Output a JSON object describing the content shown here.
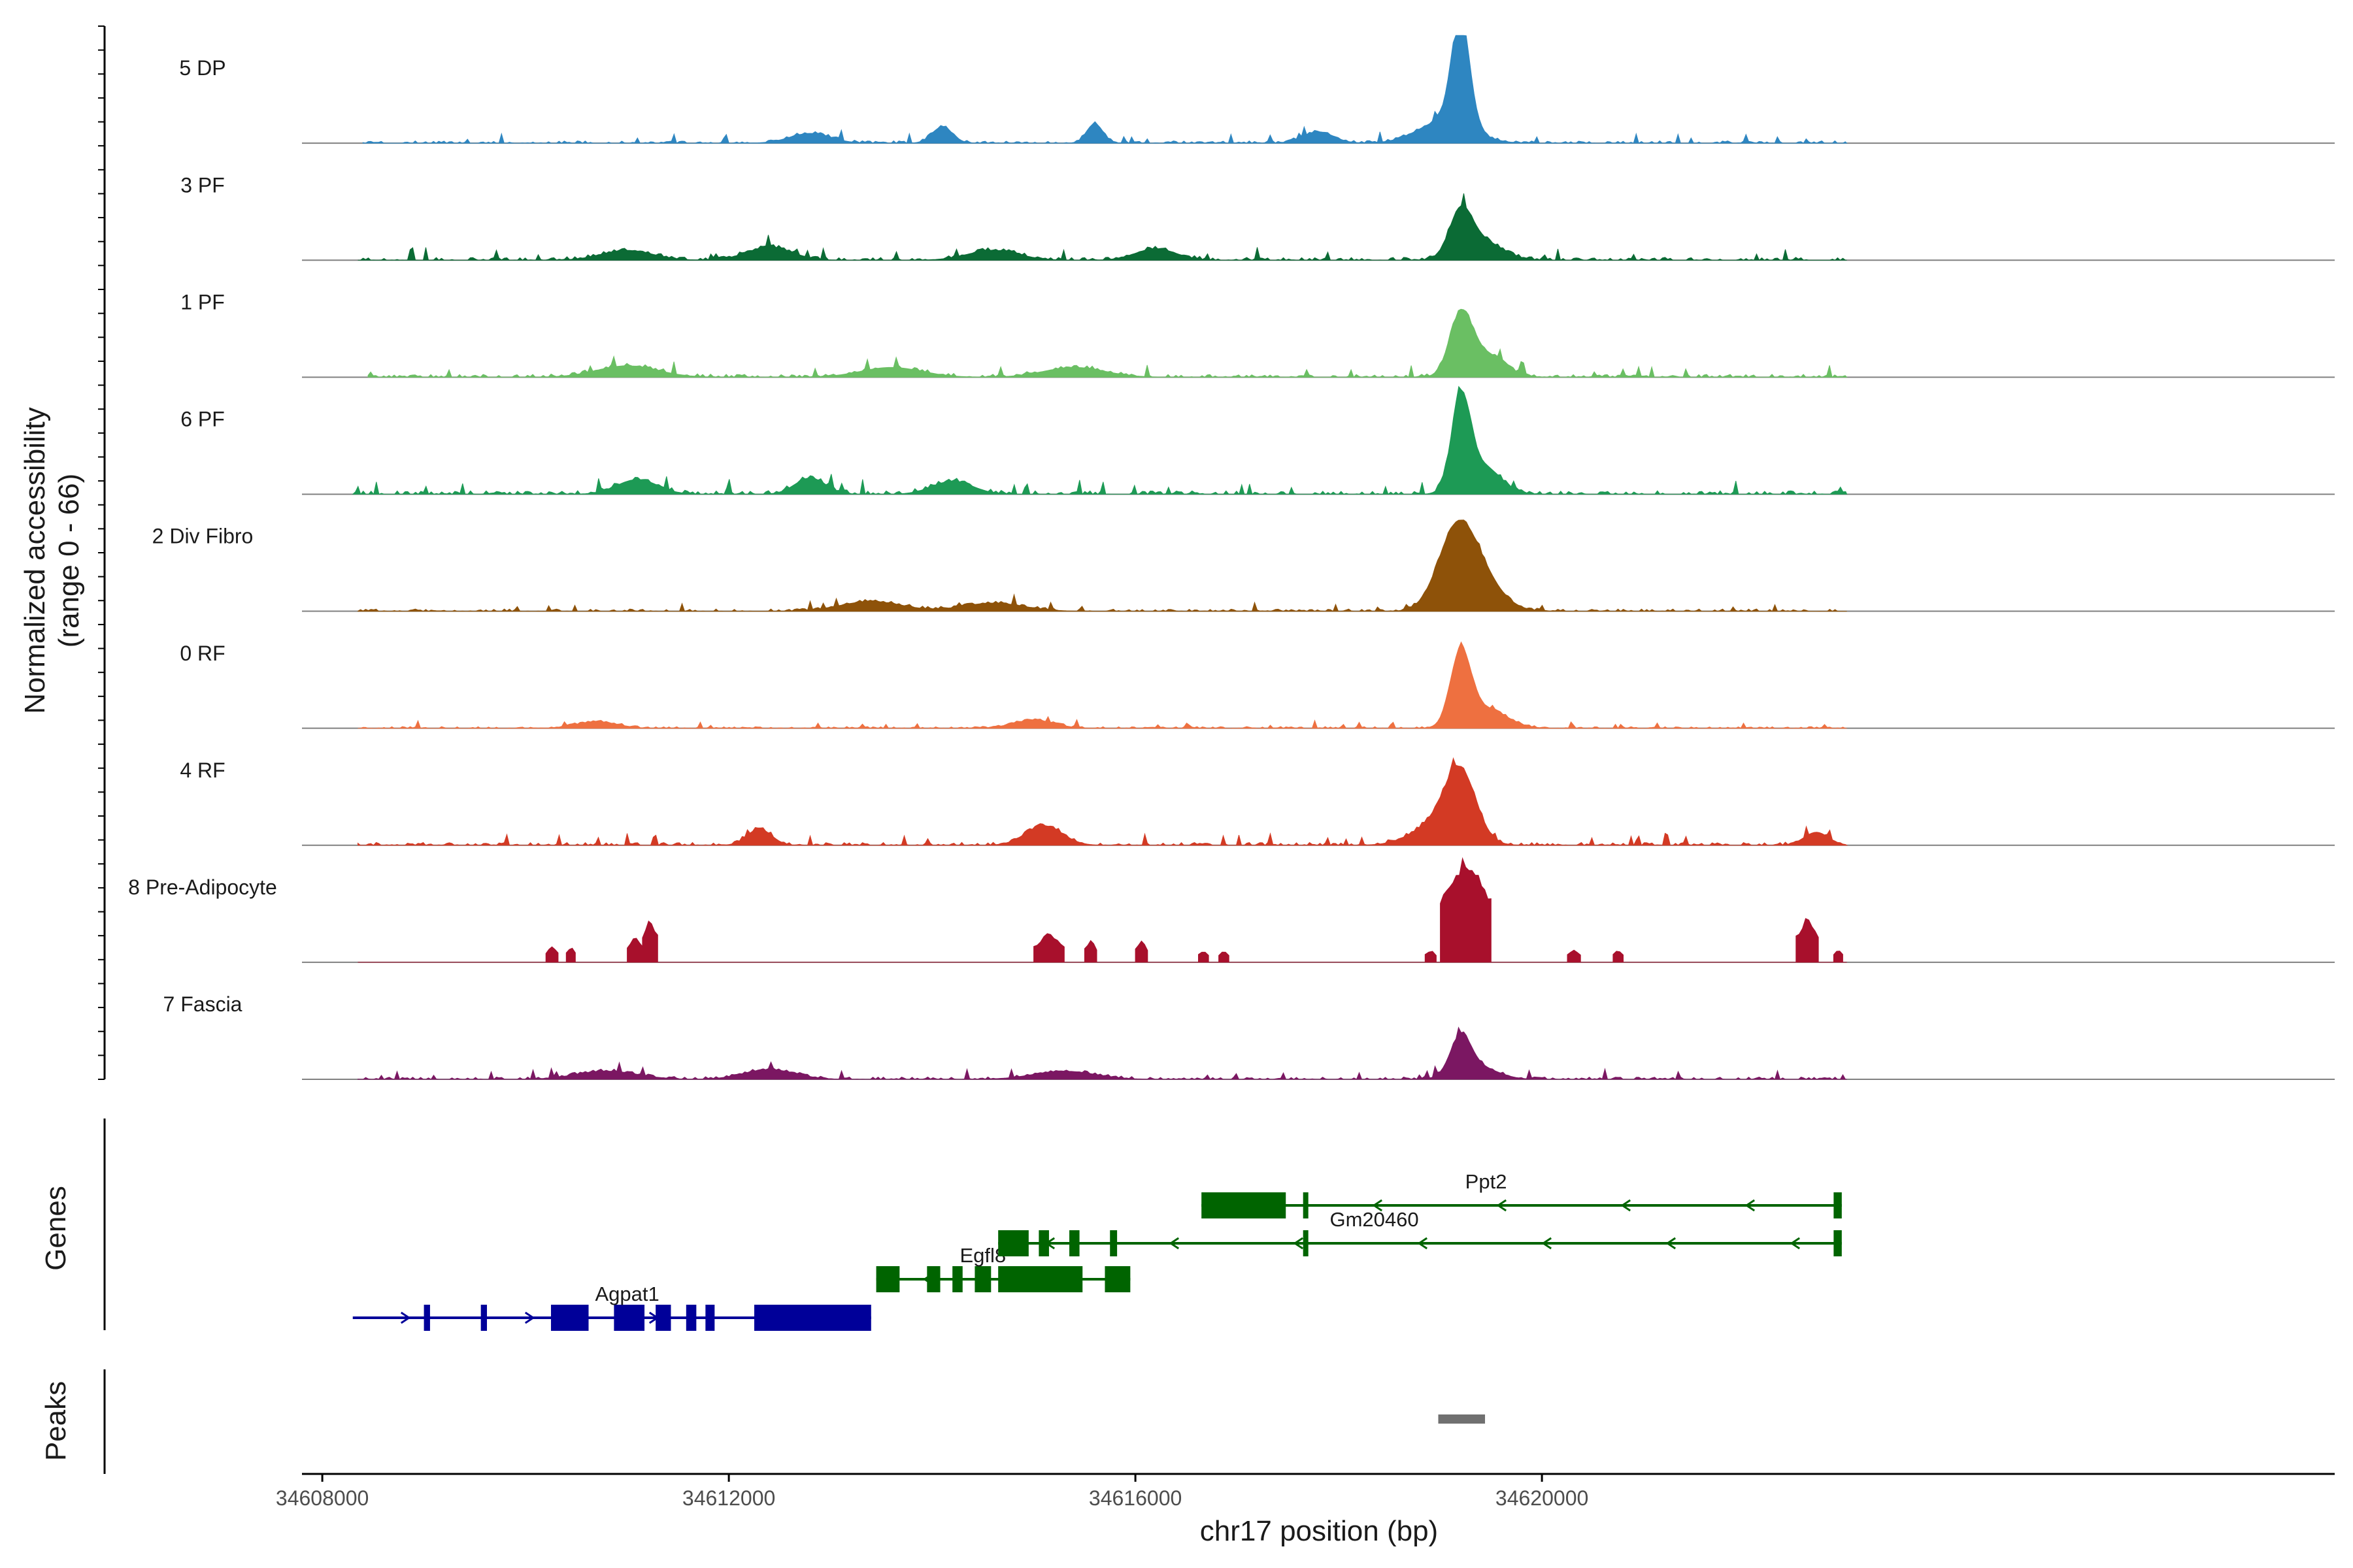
{
  "chart_data": {
    "type": "area",
    "xlabel": "chr17 position (bp)",
    "ylabel": "Normalized accessibility",
    "ylabel_sub": "(range 0 - 66)",
    "ylim": [
      0,
      66
    ],
    "xlim": [
      34607800,
      34627800
    ],
    "xticks": [
      34608000,
      34612000,
      34616000,
      34620000
    ],
    "xtick_labels": [
      "34608000",
      "34612000",
      "34616000",
      "34620000"
    ],
    "tracks": [
      {
        "name": "5 DP",
        "color": "#2E86C1",
        "noise": 4,
        "start": 34608400,
        "end": 34623000,
        "peaks": [
          [
            34619200,
            66,
            90
          ],
          [
            34619050,
            14,
            260
          ],
          [
            34615600,
            12,
            80
          ],
          [
            34614100,
            10,
            100
          ],
          [
            34612800,
            6,
            200
          ],
          [
            34617800,
            7,
            150
          ]
        ],
        "seed": 11
      },
      {
        "name": "3 PF",
        "color": "#0B6B35",
        "noise": 5,
        "start": 34608350,
        "end": 34623000,
        "peaks": [
          [
            34619200,
            26,
            110
          ],
          [
            34619400,
            12,
            200
          ],
          [
            34612400,
            8,
            220
          ],
          [
            34616200,
            7,
            200
          ],
          [
            34611000,
            6,
            250
          ],
          [
            34614600,
            6,
            250
          ]
        ],
        "seed": 23
      },
      {
        "name": "1 PF",
        "color": "#6ABF63",
        "noise": 5,
        "start": 34608450,
        "end": 34623000,
        "peaks": [
          [
            34619200,
            36,
            110
          ],
          [
            34619450,
            14,
            180
          ],
          [
            34611000,
            7,
            300
          ],
          [
            34613600,
            6,
            300
          ],
          [
            34615400,
            6,
            300
          ]
        ],
        "seed": 37
      },
      {
        "name": "6 PF",
        "color": "#1D9A55",
        "noise": 6,
        "start": 34608300,
        "end": 34623000,
        "peaks": [
          [
            34619200,
            54,
            90
          ],
          [
            34619400,
            18,
            180
          ],
          [
            34612800,
            10,
            150
          ],
          [
            34611100,
            9,
            200
          ],
          [
            34614200,
            8,
            200
          ]
        ],
        "seed": 41
      },
      {
        "name": "2 Div Fibro",
        "color": "#8E5209",
        "noise": 4,
        "start": 34608350,
        "end": 34623000,
        "peaks": [
          [
            34619150,
            40,
            180
          ],
          [
            34619350,
            22,
            220
          ],
          [
            34613400,
            6,
            300
          ],
          [
            34614600,
            5,
            300
          ]
        ],
        "seed": 53
      },
      {
        "name": "0 RF",
        "color": "#EE7040",
        "noise": 3,
        "start": 34608350,
        "end": 34623000,
        "peaks": [
          [
            34619200,
            44,
            100
          ],
          [
            34619450,
            12,
            200
          ],
          [
            34615000,
            5,
            200
          ],
          [
            34610700,
            4,
            200
          ]
        ],
        "seed": 61
      },
      {
        "name": "4 RF",
        "color": "#D33A24",
        "noise": 5,
        "start": 34608350,
        "end": 34623000,
        "peaks": [
          [
            34619200,
            38,
            150
          ],
          [
            34619000,
            14,
            250
          ],
          [
            34612300,
            10,
            120
          ],
          [
            34615100,
            12,
            180
          ],
          [
            34622700,
            8,
            120
          ]
        ],
        "seed": 71
      },
      {
        "name": "8 Pre-Adipocyte",
        "color": "#A8102C",
        "noise": 0,
        "start": 34608350,
        "end": 34623000,
        "blocks": [
          [
            34610200,
            34610320,
            10
          ],
          [
            34610400,
            34610490,
            10
          ],
          [
            34611000,
            34611150,
            16
          ],
          [
            34611150,
            34611300,
            28
          ],
          [
            34615000,
            34615300,
            18
          ],
          [
            34615500,
            34615620,
            14
          ],
          [
            34616000,
            34616120,
            14
          ],
          [
            34616620,
            34616720,
            8
          ],
          [
            34616820,
            34616920,
            8
          ],
          [
            34618850,
            34618960,
            8
          ],
          [
            34619000,
            34619500,
            66
          ],
          [
            34620250,
            34620380,
            8
          ],
          [
            34620700,
            34620800,
            8
          ],
          [
            34622500,
            34622720,
            28
          ],
          [
            34622870,
            34622960,
            8
          ]
        ],
        "seed": 83
      },
      {
        "name": "7 Fascia",
        "color": "#7B1762",
        "noise": 4,
        "start": 34608350,
        "end": 34623000,
        "peaks": [
          [
            34619200,
            22,
            100
          ],
          [
            34619350,
            8,
            200
          ],
          [
            34612400,
            6,
            250
          ],
          [
            34615300,
            5,
            300
          ],
          [
            34610800,
            5,
            300
          ]
        ],
        "seed": 97
      }
    ],
    "genes_panel_label": "Genes",
    "peaks_panel_label": "Peaks",
    "genes": [
      {
        "name": "Agpat1",
        "strand": "+",
        "color": "#000099",
        "start": 34608300,
        "end": 34613400,
        "row": 3,
        "exons": [
          [
            34609000,
            34609060
          ],
          [
            34609560,
            34609620
          ],
          [
            34610250,
            34610620
          ],
          [
            34610870,
            34611170
          ],
          [
            34611280,
            34611430
          ],
          [
            34611580,
            34611680
          ],
          [
            34611770,
            34611860
          ],
          [
            34612250,
            34613400
          ]
        ],
        "label_pos": 34611000,
        "label_row": 3
      },
      {
        "name": "Egfl8",
        "strand": "-",
        "color": "#006400",
        "start": 34613450,
        "end": 34615950,
        "row": 2,
        "exons": [
          [
            34613450,
            34613680
          ],
          [
            34613950,
            34614080
          ],
          [
            34614200,
            34614300
          ],
          [
            34614420,
            34614580
          ],
          [
            34614650,
            34615480
          ],
          [
            34615700,
            34615950
          ]
        ],
        "label_pos": 34614500,
        "label_row": 2
      },
      {
        "name": "Gm20460",
        "strand": "-",
        "color": "#006400",
        "start": 34614650,
        "end": 34622950,
        "row": 1,
        "exons": [
          [
            34614650,
            34614950
          ],
          [
            34615050,
            34615150
          ],
          [
            34615350,
            34615450
          ],
          [
            34615750,
            34615820
          ],
          [
            34617650,
            34617700
          ],
          [
            34622870,
            34622950
          ]
        ],
        "label_pos": 34618350,
        "label_row": 1
      },
      {
        "name": "Ppt2",
        "strand": "-",
        "color": "#006400",
        "start": 34616650,
        "end": 34622950,
        "row": 0,
        "exons": [
          [
            34616650,
            34617480
          ],
          [
            34617650,
            34617700
          ],
          [
            34622870,
            34622950
          ]
        ],
        "label_pos": 34619450,
        "label_row": 0
      }
    ],
    "peaks": [
      [
        34618980,
        34619440
      ]
    ]
  }
}
